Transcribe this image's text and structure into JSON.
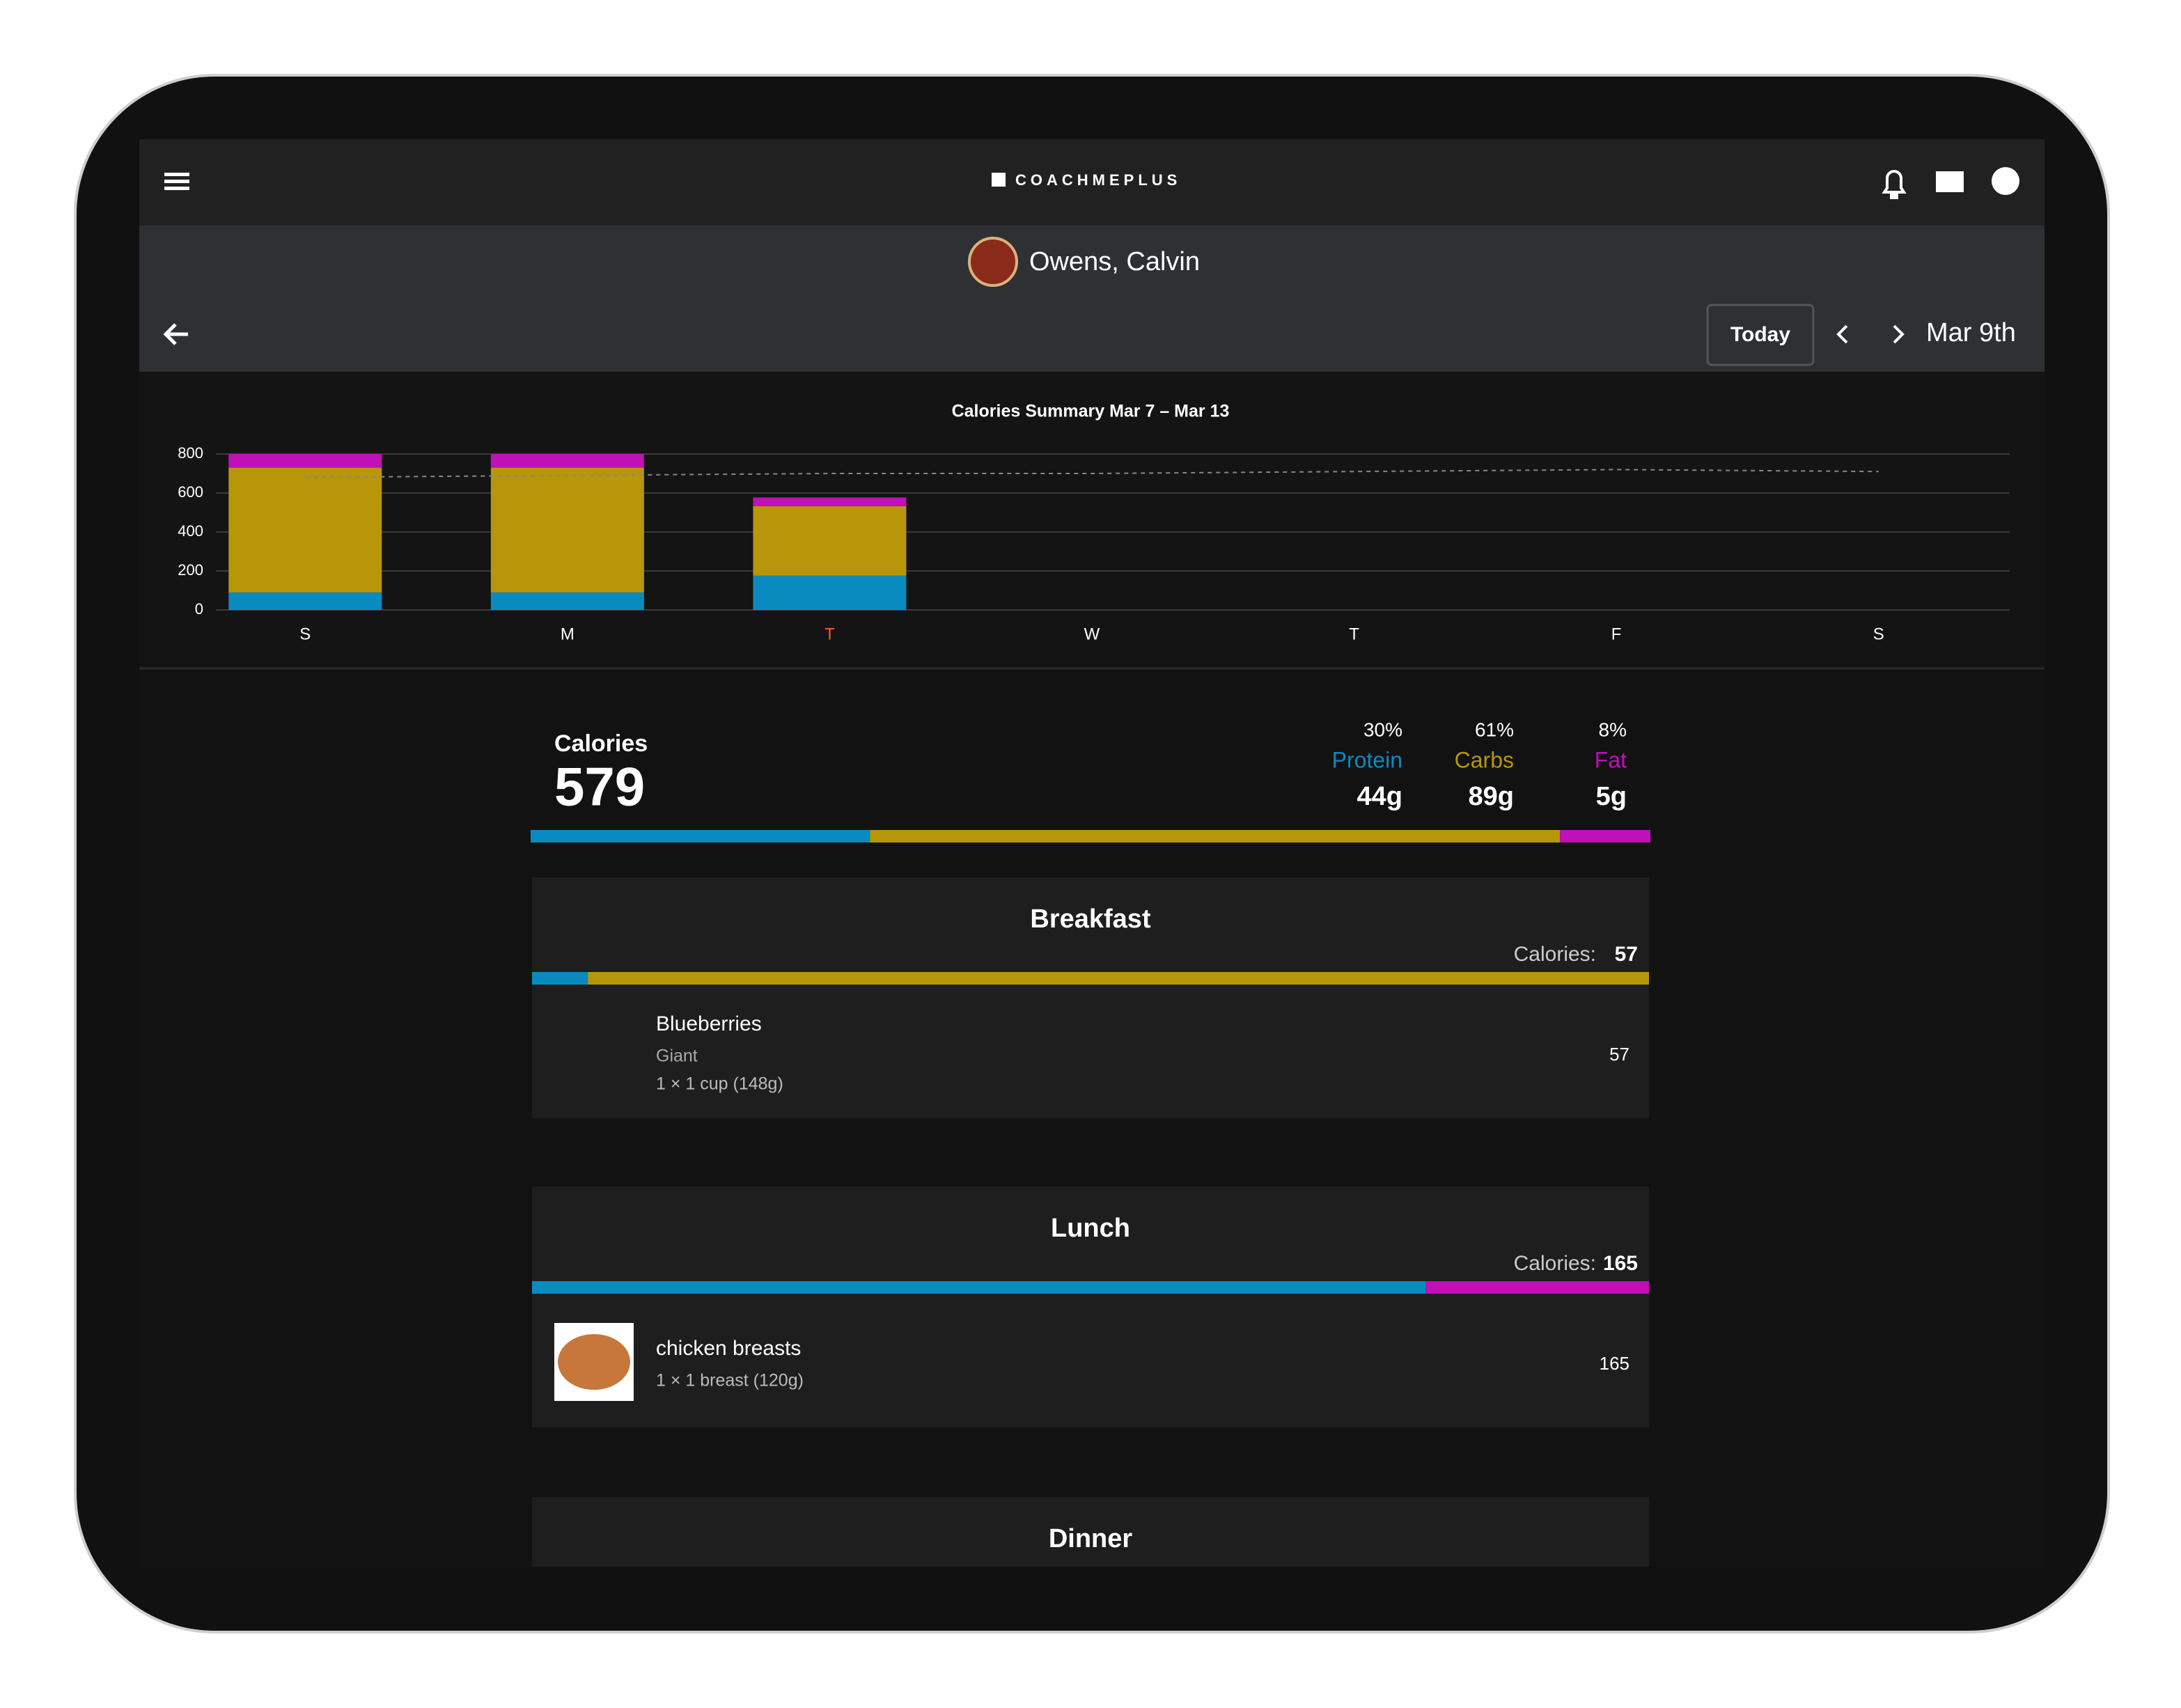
{
  "header": {
    "logo": "COACHMEPLUS",
    "athlete": "Owens, Calvin",
    "today_button": "Today",
    "date": "Mar 9th"
  },
  "chart_data": {
    "type": "bar",
    "stacked": true,
    "title": "Calories Summary Mar 7 – Mar 13",
    "categories": [
      "S",
      "M",
      "T",
      "W",
      "T",
      "F",
      "S"
    ],
    "highlight_index": 2,
    "highlight_color": "#ff5a1f",
    "series": [
      {
        "name": "Protein",
        "color": "#0a8bbf",
        "values": [
          90,
          90,
          176,
          null,
          null,
          null,
          null
        ]
      },
      {
        "name": "Carbs",
        "color": "#b8960a",
        "values": [
          640,
          640,
          356,
          null,
          null,
          null,
          null
        ]
      },
      {
        "name": "Fat",
        "color": "#c010b8",
        "values": [
          70,
          70,
          45,
          null,
          null,
          null,
          null
        ]
      }
    ],
    "line_values": [
      680,
      690,
      700,
      700,
      710,
      720,
      710
    ],
    "ylim": [
      0,
      800
    ],
    "yticks": [
      0,
      200,
      400,
      600,
      800
    ],
    "grid": true
  },
  "summary": {
    "label": "Calories",
    "total": "579",
    "macros": [
      {
        "name": "Protein",
        "percent": 30,
        "percent_label": "30%",
        "grams": "44g",
        "color": "#0a8bbf"
      },
      {
        "name": "Carbs",
        "percent": 61,
        "percent_label": "61%",
        "grams": "89g",
        "color": "#b8960a"
      },
      {
        "name": "Fat",
        "percent": 8,
        "percent_label": "8%",
        "grams": "5g",
        "color": "#c010b8"
      }
    ]
  },
  "meals": [
    {
      "title": "Breakfast",
      "calories_label": "Calories:",
      "calories": "57",
      "split": [
        5,
        95,
        0
      ],
      "items": [
        {
          "name": "Blueberries",
          "brand": "Giant",
          "serving": "1 × 1 cup (148g)",
          "calories": "57"
        }
      ]
    },
    {
      "title": "Lunch",
      "calories_label": "Calories:",
      "calories": "165",
      "split": [
        80,
        0,
        20
      ],
      "items": [
        {
          "name": "chicken breasts",
          "serving": "1 × 1 breast (120g)",
          "calories": "165"
        }
      ]
    },
    {
      "title": "Dinner"
    }
  ]
}
